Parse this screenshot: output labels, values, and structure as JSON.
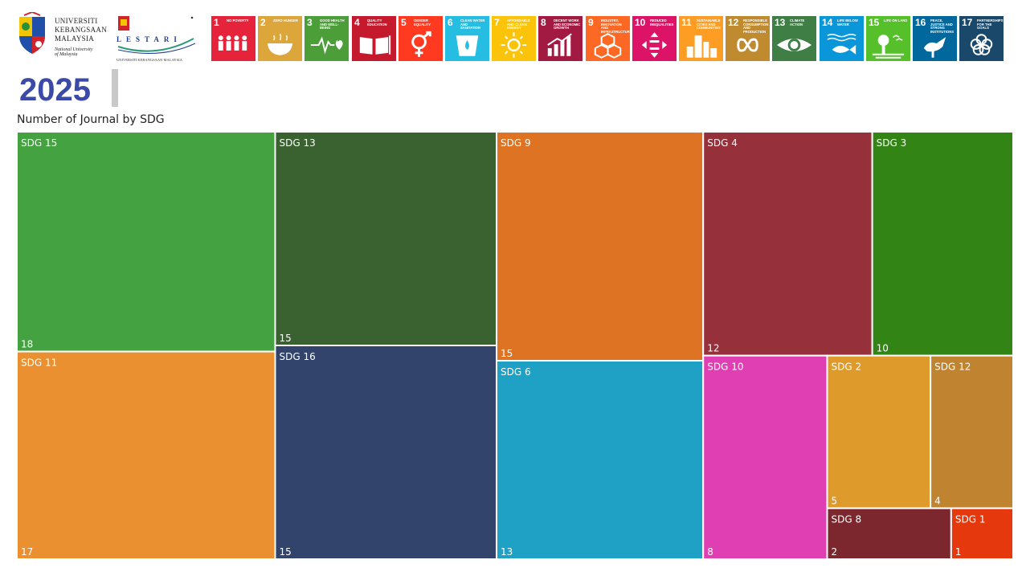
{
  "header": {
    "university": {
      "name_lines": [
        "Universiti",
        "Kebangsaan",
        "Malaysia"
      ],
      "subtitle_lines": [
        "National University",
        "of Malaysia"
      ]
    },
    "lestari": {
      "word": "LESTARI",
      "subtitle": "UNIVERSITI KEBANGSAAN MALAYSIA"
    },
    "year": "2025"
  },
  "sdg_icons": [
    {
      "num": "1",
      "caption": "NO POVERTY",
      "color": "#e5243b",
      "icon": "people-icon"
    },
    {
      "num": "2",
      "caption": "ZERO HUNGER",
      "color": "#dda63a",
      "icon": "bowl-icon"
    },
    {
      "num": "3",
      "caption": "GOOD HEALTH AND WELL-BEING",
      "color": "#4c9f38",
      "icon": "heartbeat-icon"
    },
    {
      "num": "4",
      "caption": "QUALITY EDUCATION",
      "color": "#c5192d",
      "icon": "book-icon"
    },
    {
      "num": "5",
      "caption": "GENDER EQUALITY",
      "color": "#ff3a21",
      "icon": "gender-icon"
    },
    {
      "num": "6",
      "caption": "CLEAN WATER AND SANITATION",
      "color": "#26bde2",
      "icon": "water-drop-icon"
    },
    {
      "num": "7",
      "caption": "AFFORDABLE AND CLEAN ENERGY",
      "color": "#fcc30b",
      "icon": "sun-icon"
    },
    {
      "num": "8",
      "caption": "DECENT WORK AND ECONOMIC GROWTH",
      "color": "#a21942",
      "icon": "growth-chart-icon"
    },
    {
      "num": "9",
      "caption": "INDUSTRY, INNOVATION AND INFRASTRUCTURE",
      "color": "#fd6925",
      "icon": "cubes-icon"
    },
    {
      "num": "10",
      "caption": "REDUCED INEQUALITIES",
      "color": "#dd1367",
      "icon": "arrows-icon"
    },
    {
      "num": "11",
      "caption": "SUSTAINABLE CITIES AND COMMUNITIES",
      "color": "#fd9d24",
      "icon": "city-icon"
    },
    {
      "num": "12",
      "caption": "RESPONSIBLE CONSUMPTION AND PRODUCTION",
      "color": "#bf8b2e",
      "icon": "infinity-icon"
    },
    {
      "num": "13",
      "caption": "CLIMATE ACTION",
      "color": "#3f7e44",
      "icon": "eye-globe-icon"
    },
    {
      "num": "14",
      "caption": "LIFE BELOW WATER",
      "color": "#0a97d9",
      "icon": "fish-icon"
    },
    {
      "num": "15",
      "caption": "LIFE ON LAND",
      "color": "#56c02b",
      "icon": "tree-icon"
    },
    {
      "num": "16",
      "caption": "PEACE, JUSTICE AND STRONG INSTITUTIONS",
      "color": "#00689d",
      "icon": "dove-icon"
    },
    {
      "num": "17",
      "caption": "PARTNERSHIPS FOR THE GOALS",
      "color": "#19486a",
      "icon": "rings-icon"
    }
  ],
  "chart_data": {
    "type": "treemap",
    "title": "Number of Journal by SDG",
    "items": [
      {
        "label": "SDG 15",
        "value": 18,
        "color": "#44a340"
      },
      {
        "label": "SDG 11",
        "value": 17,
        "color": "#ea9030"
      },
      {
        "label": "SDG 13",
        "value": 15,
        "color": "#3a6130"
      },
      {
        "label": "SDG 16",
        "value": 15,
        "color": "#33446c"
      },
      {
        "label": "SDG 9",
        "value": 15,
        "color": "#de7423"
      },
      {
        "label": "SDG 6",
        "value": 13,
        "color": "#1ea1c4"
      },
      {
        "label": "SDG 4",
        "value": 12,
        "color": "#96303a"
      },
      {
        "label": "SDG 3",
        "value": 10,
        "color": "#328515"
      },
      {
        "label": "SDG 10",
        "value": 8,
        "color": "#df3fb3"
      },
      {
        "label": "SDG 2",
        "value": 5,
        "color": "#de9a2a"
      },
      {
        "label": "SDG 12",
        "value": 4,
        "color": "#c08330"
      },
      {
        "label": "SDG 8",
        "value": 2,
        "color": "#7b272d"
      },
      {
        "label": "SDG 1",
        "value": 1,
        "color": "#e5380d"
      }
    ]
  }
}
